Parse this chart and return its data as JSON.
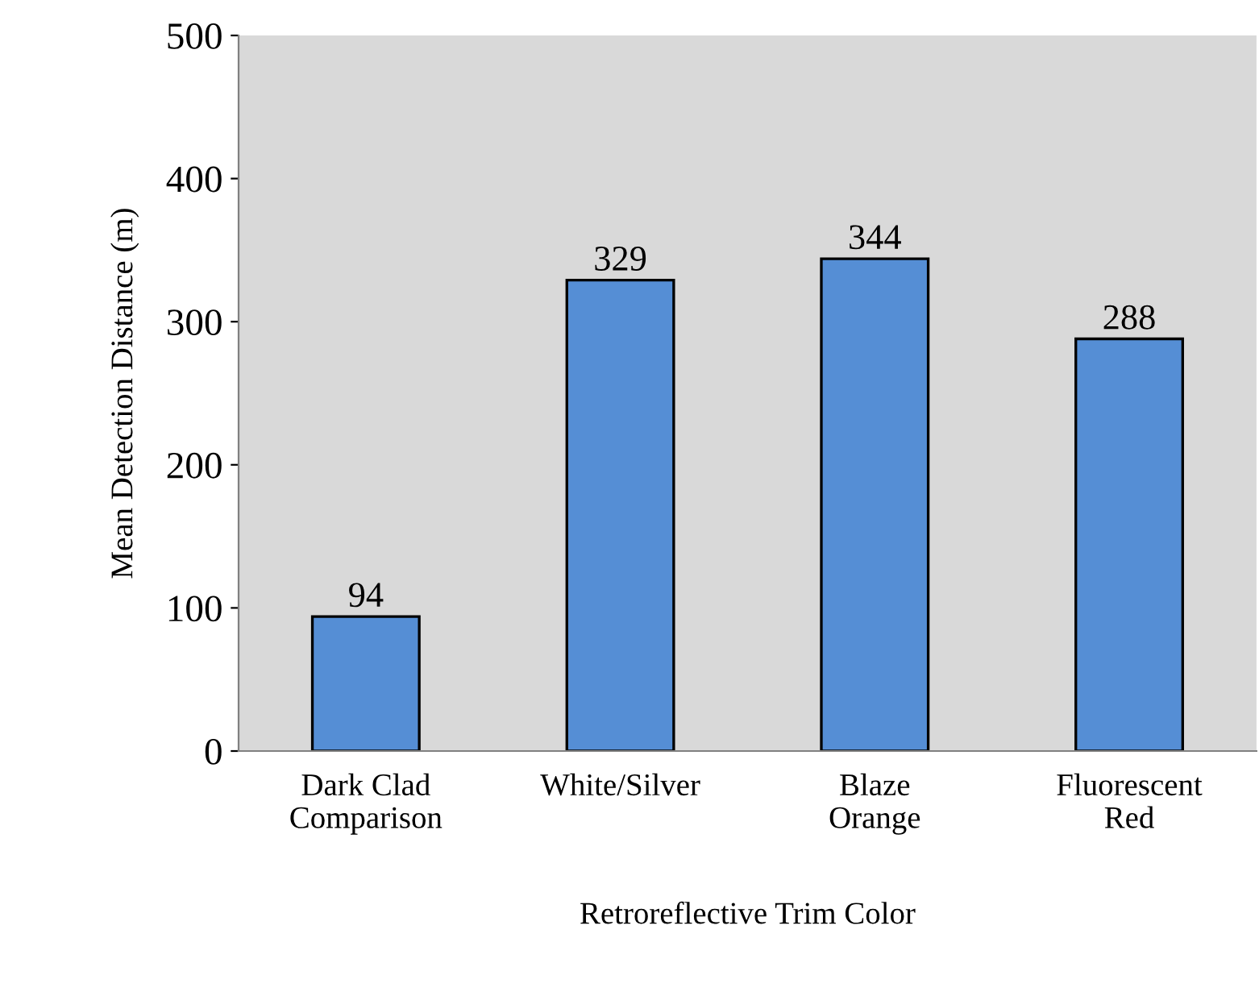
{
  "chart_data": {
    "type": "bar",
    "xlabel": "Retroreflective Trim Color",
    "ylabel": "Mean Detection Distance (m)",
    "categories": [
      "Dark Clad\nComparison",
      "White/Silver",
      "Blaze\nOrange",
      "Fluorescent\nRed"
    ],
    "values": [
      94,
      329,
      344,
      288
    ],
    "color": "#558ed5",
    "ylim": [
      0,
      500
    ],
    "yticks": [
      0,
      100,
      200,
      300,
      400,
      500
    ],
    "grid": false,
    "data_labels": true,
    "legend": false
  }
}
